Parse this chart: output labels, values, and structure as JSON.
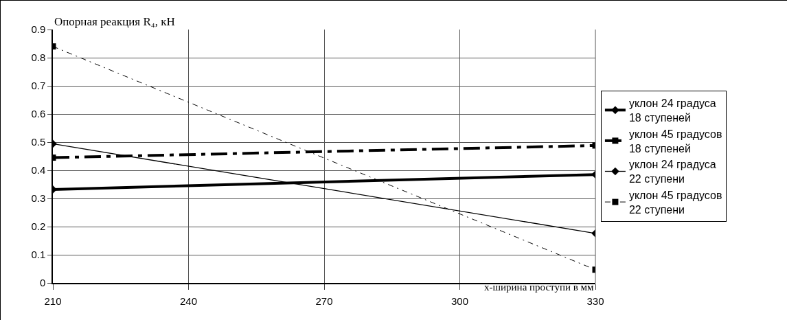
{
  "chart_data": {
    "type": "line",
    "title": "Опорная реакция R₄, кН",
    "xlabel": "х-ширина проступи в мм",
    "x": [
      210,
      330
    ],
    "series": [
      {
        "name": "уклон 24 градуса 18 ступеней",
        "color": "#000000",
        "values": [
          0.332,
          0.385
        ],
        "marker": "diamond",
        "line_style": "solid"
      },
      {
        "name": "уклон 45 градусов 18 ступеней",
        "color": "#000000",
        "values": [
          0.445,
          0.488
        ],
        "marker": "square",
        "line_style": "dashed"
      },
      {
        "name": "уклон 24 градуса 22 ступени",
        "color": "#000000",
        "values": [
          0.494,
          0.176
        ],
        "marker": "diamond",
        "line_style": "solid"
      },
      {
        "name": "уклон 45 градусов 22 ступени",
        "color": "#000000",
        "values": [
          0.84,
          0.047
        ],
        "marker": "square",
        "line_style": "dashdot"
      }
    ],
    "xlim": [
      210,
      330
    ],
    "xticks": [
      210,
      240,
      270,
      300,
      330
    ],
    "ylim": [
      0,
      0.9
    ],
    "yticks": [
      0,
      0.1,
      0.2,
      0.3,
      0.4,
      0.5,
      0.6,
      0.7,
      0.8,
      0.9
    ],
    "grid": true,
    "legend": "right"
  }
}
